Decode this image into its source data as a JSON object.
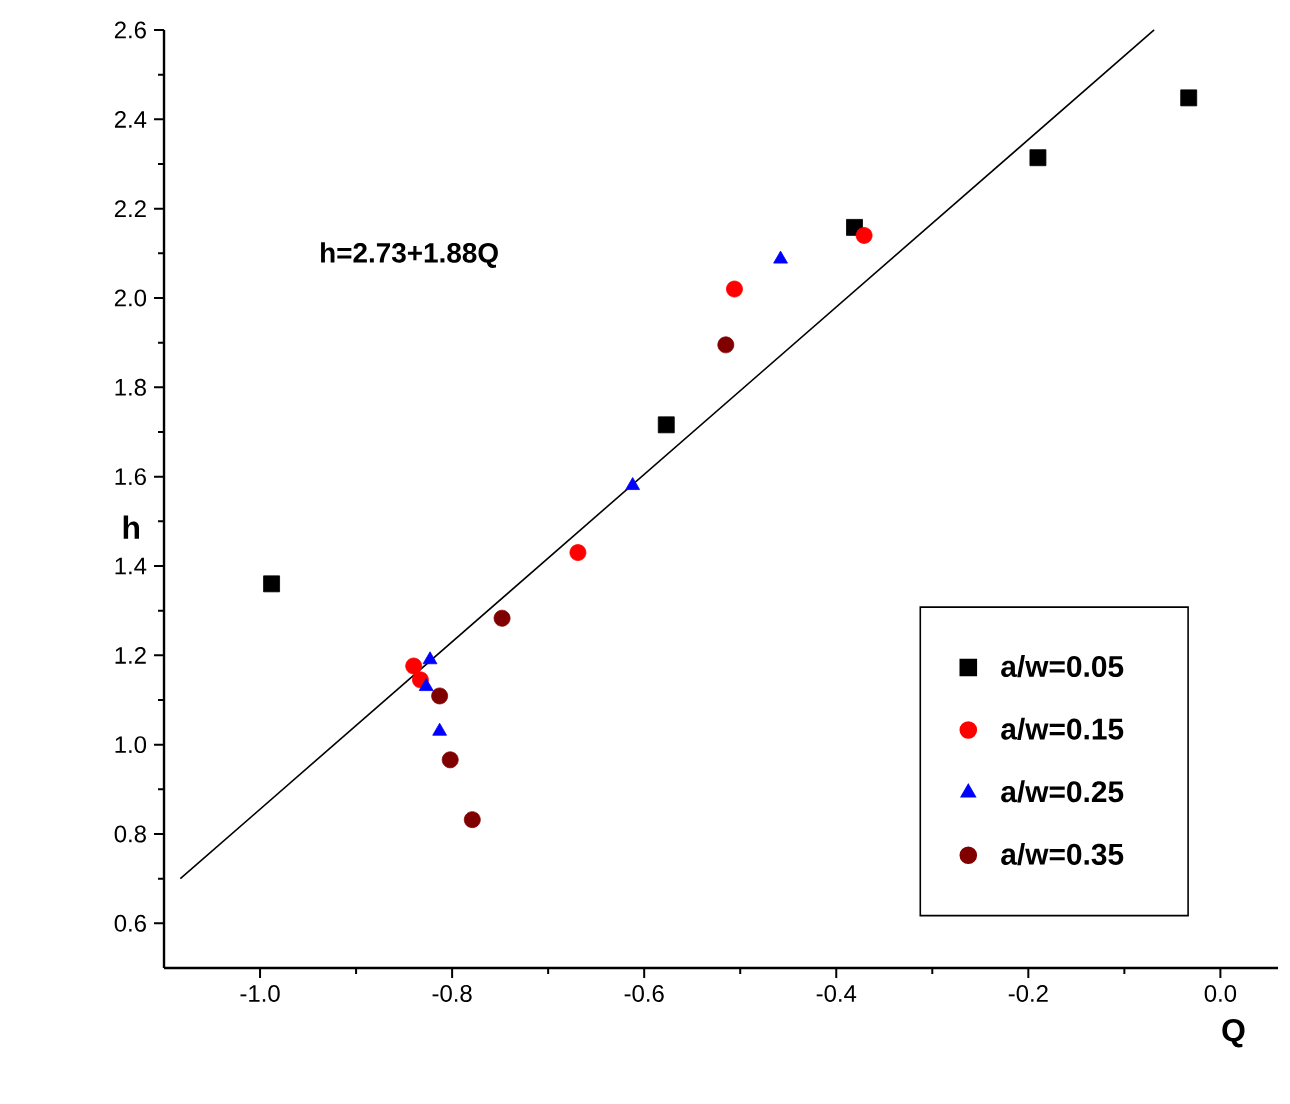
{
  "chart_data": {
    "type": "scatter",
    "xlabel": "Q",
    "ylabel": "h",
    "annotations": [
      "h=2.73+1.88Q"
    ],
    "xlim": [
      -1.1,
      0.06
    ],
    "ylim": [
      0.5,
      2.6
    ],
    "xticks": [
      {
        "value": -1.0,
        "label": "-1.0"
      },
      {
        "value": -0.8,
        "label": "-0.8"
      },
      {
        "value": -0.6,
        "label": "-0.6"
      },
      {
        "value": -0.4,
        "label": "-0.4"
      },
      {
        "value": -0.2,
        "label": "-0.2"
      },
      {
        "value": 0.0,
        "label": "0.0"
      }
    ],
    "yticks": [
      {
        "value": 0.6,
        "label": "0.6"
      },
      {
        "value": 0.8,
        "label": "0.8"
      },
      {
        "value": 1.0,
        "label": "1.0"
      },
      {
        "value": 1.2,
        "label": "1.2"
      },
      {
        "value": 1.4,
        "label": "1.4"
      },
      {
        "value": 1.6,
        "label": "1.6"
      },
      {
        "value": 1.8,
        "label": "1.8"
      },
      {
        "value": 2.0,
        "label": "2.0"
      },
      {
        "value": 2.2,
        "label": "2.2"
      },
      {
        "value": 2.4,
        "label": "2.4"
      },
      {
        "value": 2.6,
        "label": "2.6"
      }
    ],
    "grid": false,
    "legend": "bottom right",
    "series": [
      {
        "type": "line",
        "color": "#000000",
        "marker": "none",
        "line_style": "solid",
        "x": [
          -1.083,
          -0.069
        ],
        "values": [
          0.7,
          2.6
        ]
      },
      {
        "name": "a/w=0.05",
        "color": "#000000",
        "marker": "square",
        "x": [
          -0.988,
          -0.577,
          -0.381,
          -0.19,
          -0.033
        ],
        "values": [
          1.36,
          1.716,
          2.158,
          2.314,
          2.448
        ]
      },
      {
        "name": "a/w=0.15",
        "color": "#ff0000",
        "marker": "circle",
        "x": [
          -0.506,
          -0.371,
          -0.669,
          -0.84,
          -0.833
        ],
        "values": [
          2.02,
          2.14,
          1.43,
          1.176,
          1.145
        ]
      },
      {
        "name": "a/w=0.25",
        "color": "#0000ff",
        "marker": "triangle",
        "x": [
          -0.458,
          -0.612,
          -0.823,
          -0.827,
          -0.813
        ],
        "values": [
          2.087,
          1.58,
          1.19,
          1.13,
          1.03
        ]
      },
      {
        "name": "a/w=0.35",
        "color": "#800000",
        "marker": "circle",
        "x": [
          -0.515,
          -0.748,
          -0.813,
          -0.802,
          -0.779
        ],
        "values": [
          1.895,
          1.283,
          1.109,
          0.966,
          0.832
        ]
      }
    ]
  }
}
